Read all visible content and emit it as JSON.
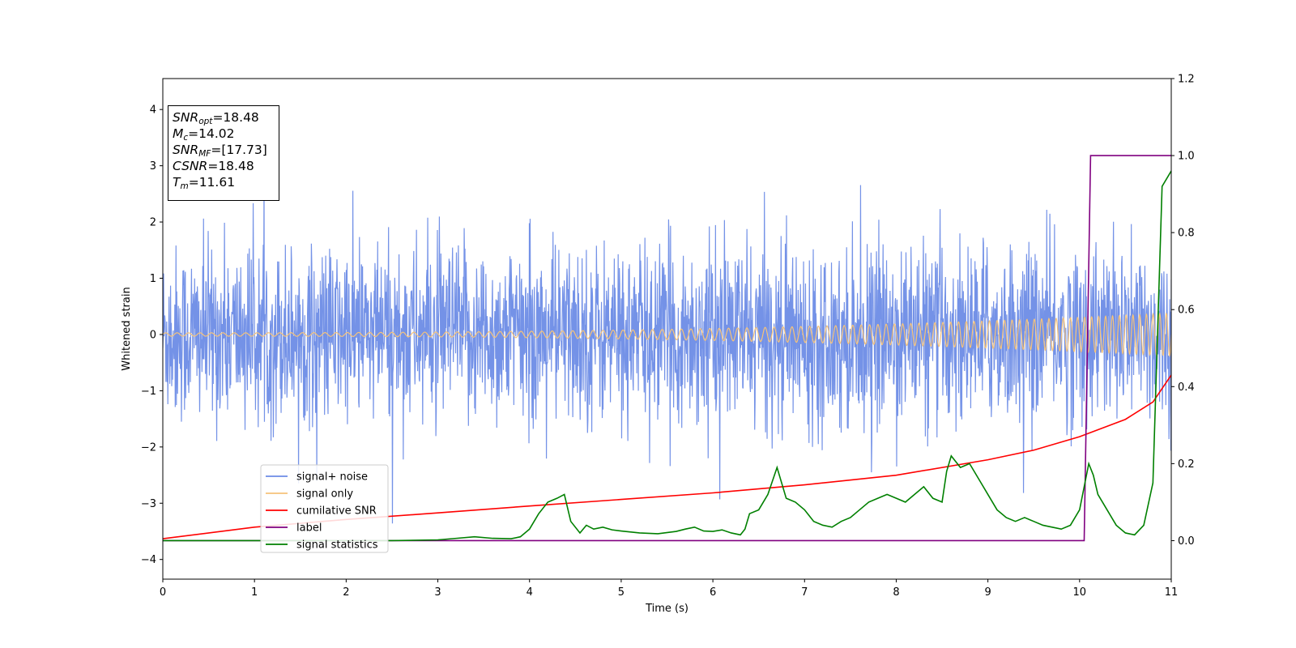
{
  "chart_data": {
    "type": "line",
    "xlabel": "Time (s)",
    "ylabel": "Whitened strain",
    "xlim": [
      0,
      11
    ],
    "ylim_left": [
      -4.35,
      4.55
    ],
    "ylim_right": [
      -0.1,
      1.2
    ],
    "x_ticks": [
      0,
      1,
      2,
      3,
      4,
      5,
      6,
      7,
      8,
      9,
      10,
      11
    ],
    "y_ticks_left": [
      -4,
      -3,
      -2,
      -1,
      0,
      1,
      2,
      3,
      4
    ],
    "y_ticks_right": [
      0.0,
      0.2,
      0.4,
      0.6,
      0.8,
      1.0,
      1.2
    ],
    "legend_position": "lower-left",
    "legend": [
      {
        "name": "signal+ noise",
        "color": "#6d8ce6"
      },
      {
        "name": "signal only",
        "color": "#f6c37a"
      },
      {
        "name": "cumilative SNR",
        "color": "#ff0000"
      },
      {
        "name": "label",
        "color": "#800080"
      },
      {
        "name": "signal statistics",
        "color": "#008000"
      }
    ],
    "annotation": {
      "snr_opt": {
        "label": "SNR",
        "sub": "opt",
        "value": "=18.48"
      },
      "mc": {
        "label": "M",
        "sub": "c",
        "value": "=14.02"
      },
      "snr_mf": {
        "label": "SNR",
        "sub": "MF",
        "value": "=[17.73]"
      },
      "csnr": {
        "label": "CSNR",
        "value": "=18.48"
      },
      "tm": {
        "label": "T",
        "sub": "m",
        "value": "=11.61"
      }
    },
    "series": [
      {
        "name": "signal+ noise",
        "axis": "left",
        "color": "#6d8ce6",
        "sigma": 0.78,
        "duration": 11,
        "samples": 2600
      },
      {
        "name": "signal only",
        "axis": "left",
        "color": "#f6c37a",
        "amplitude_start": 0.03,
        "amplitude_end": 0.38,
        "duration": 11
      },
      {
        "name": "cumilative SNR",
        "axis": "right",
        "color": "#ff0000",
        "x": [
          0,
          1,
          2,
          3,
          4,
          5,
          6,
          7,
          8,
          9,
          9.5,
          10,
          10.5,
          10.8,
          11
        ],
        "y": [
          0.005,
          0.035,
          0.055,
          0.072,
          0.09,
          0.107,
          0.124,
          0.145,
          0.17,
          0.21,
          0.235,
          0.27,
          0.315,
          0.36,
          0.43
        ]
      },
      {
        "name": "label",
        "axis": "right",
        "color": "#800080",
        "x": [
          0,
          10.05,
          10.12,
          11
        ],
        "y": [
          0,
          0,
          1,
          1
        ]
      },
      {
        "name": "signal statistics",
        "axis": "right",
        "color": "#008000",
        "x": [
          0,
          1,
          2,
          2.5,
          3,
          3.2,
          3.4,
          3.6,
          3.8,
          3.9,
          4.0,
          4.1,
          4.2,
          4.3,
          4.38,
          4.45,
          4.55,
          4.62,
          4.7,
          4.8,
          4.9,
          5.0,
          5.2,
          5.4,
          5.6,
          5.7,
          5.8,
          5.9,
          6.0,
          6.1,
          6.2,
          6.3,
          6.35,
          6.4,
          6.5,
          6.6,
          6.7,
          6.8,
          6.9,
          7.0,
          7.1,
          7.2,
          7.3,
          7.4,
          7.5,
          7.6,
          7.7,
          7.8,
          7.9,
          8.0,
          8.1,
          8.2,
          8.3,
          8.4,
          8.5,
          8.55,
          8.6,
          8.7,
          8.8,
          8.9,
          9.0,
          9.1,
          9.2,
          9.3,
          9.4,
          9.5,
          9.6,
          9.7,
          9.8,
          9.9,
          10.0,
          10.1,
          10.15,
          10.2,
          10.3,
          10.4,
          10.5,
          10.6,
          10.7,
          10.8,
          10.9,
          11.0
        ],
        "y": [
          0.0,
          0.0,
          0.0,
          0.0,
          0.002,
          0.006,
          0.01,
          0.006,
          0.005,
          0.01,
          0.03,
          0.07,
          0.1,
          0.11,
          0.12,
          0.05,
          0.02,
          0.04,
          0.03,
          0.035,
          0.028,
          0.025,
          0.02,
          0.018,
          0.024,
          0.03,
          0.035,
          0.025,
          0.024,
          0.028,
          0.02,
          0.015,
          0.03,
          0.07,
          0.08,
          0.12,
          0.19,
          0.11,
          0.1,
          0.08,
          0.05,
          0.04,
          0.035,
          0.05,
          0.06,
          0.08,
          0.1,
          0.11,
          0.12,
          0.11,
          0.1,
          0.12,
          0.14,
          0.11,
          0.1,
          0.18,
          0.22,
          0.19,
          0.2,
          0.16,
          0.12,
          0.08,
          0.06,
          0.05,
          0.06,
          0.05,
          0.04,
          0.035,
          0.03,
          0.04,
          0.08,
          0.2,
          0.17,
          0.12,
          0.08,
          0.04,
          0.02,
          0.015,
          0.04,
          0.15,
          0.92,
          0.96
        ]
      }
    ]
  }
}
